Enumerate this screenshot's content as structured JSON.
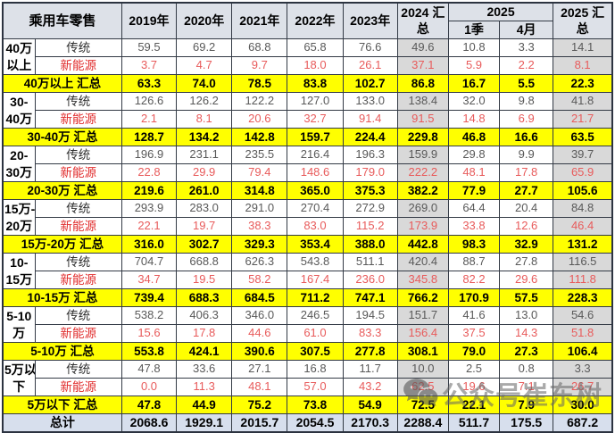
{
  "colors": {
    "summary_row_bg": "#ffff00",
    "summary_column_bg": "#d9d9d9",
    "header_bg": "#dde1e8",
    "total_row_bg": "#d7dfed",
    "nev_label_text": "#e02a2a",
    "nev_value_text": "#e85b5b",
    "traditional_value_text": "#595959",
    "grid_border": "#333a45"
  },
  "watermark": {
    "icon": "wechat-icon",
    "text": "公众号崔东树"
  },
  "chart_data": {
    "type": "table",
    "title": "乘用车零售",
    "year_headers": [
      "2019年",
      "2020年",
      "2021年",
      "2022年",
      "2023年"
    ],
    "summary_2024_header": "2024 汇总",
    "group_2025_header": "2025",
    "sub_2025_headers": [
      "1季",
      "4月"
    ],
    "summary_2025_header": "2025 汇总",
    "row_type_labels": {
      "traditional": "传统",
      "nev": "新能源"
    },
    "segments": [
      {
        "label_lines": [
          "40万",
          "以上"
        ],
        "summary_label": "40万以上 汇总",
        "traditional": [
          "59.5",
          "69.2",
          "68.8",
          "65.8",
          "76.6",
          "49.6",
          "10.8",
          "3.3",
          "14.1"
        ],
        "nev": [
          "3.7",
          "4.7",
          "9.7",
          "18.0",
          "26.1",
          "37.1",
          "5.9",
          "2.2",
          "8.1"
        ],
        "summary": [
          "63.3",
          "74.0",
          "78.5",
          "83.8",
          "102.7",
          "86.8",
          "16.7",
          "5.5",
          "22.3"
        ]
      },
      {
        "label_lines": [
          "30-",
          "40万"
        ],
        "summary_label": "30-40万 汇总",
        "traditional": [
          "126.6",
          "126.2",
          "122.2",
          "127.0",
          "133.0",
          "138.4",
          "32.0",
          "9.8",
          "41.8"
        ],
        "nev": [
          "2.1",
          "8.1",
          "20.6",
          "32.7",
          "91.4",
          "91.5",
          "14.8",
          "6.9",
          "21.7"
        ],
        "summary": [
          "128.7",
          "134.2",
          "142.8",
          "159.7",
          "224.4",
          "229.8",
          "46.8",
          "16.6",
          "63.5"
        ]
      },
      {
        "label_lines": [
          "20-",
          "30万"
        ],
        "summary_label": "20-30万 汇总",
        "traditional": [
          "196.9",
          "231.1",
          "235.5",
          "216.4",
          "196.3",
          "159.9",
          "29.8",
          "9.9",
          "39.7"
        ],
        "nev": [
          "22.8",
          "29.9",
          "79.4",
          "148.6",
          "179.0",
          "222.2",
          "48.1",
          "17.8",
          "65.9"
        ],
        "summary": [
          "219.6",
          "261.0",
          "314.8",
          "365.0",
          "375.3",
          "382.2",
          "77.9",
          "27.7",
          "105.6"
        ]
      },
      {
        "label_lines": [
          "15万-",
          "20万"
        ],
        "summary_label": "15万-20万 汇总",
        "traditional": [
          "293.9",
          "283.0",
          "291.0",
          "270.4",
          "272.9",
          "269.0",
          "64.4",
          "20.4",
          "84.8"
        ],
        "nev": [
          "22.1",
          "19.7",
          "38.3",
          "83.0",
          "115.2",
          "173.9",
          "33.8",
          "12.6",
          "46.4"
        ],
        "summary": [
          "316.0",
          "302.7",
          "329.3",
          "353.4",
          "388.0",
          "442.8",
          "98.3",
          "32.9",
          "131.2"
        ]
      },
      {
        "label_lines": [
          "10-",
          "15万"
        ],
        "summary_label": "10-15万 汇总",
        "traditional": [
          "704.7",
          "668.8",
          "626.3",
          "543.8",
          "511.1",
          "420.4",
          "88.7",
          "27.8",
          "116.5"
        ],
        "nev": [
          "34.7",
          "19.5",
          "58.2",
          "167.4",
          "236.0",
          "345.8",
          "82.2",
          "29.6",
          "111.8"
        ],
        "summary": [
          "739.4",
          "688.3",
          "684.5",
          "711.2",
          "747.1",
          "766.2",
          "170.9",
          "57.5",
          "228.3"
        ]
      },
      {
        "label_lines": [
          "5-10",
          "万"
        ],
        "summary_label": "5-10万 汇总",
        "traditional": [
          "538.2",
          "406.3",
          "346.0",
          "246.5",
          "194.5",
          "151.7",
          "41.6",
          "13.0",
          "54.6"
        ],
        "nev": [
          "15.6",
          "17.8",
          "44.6",
          "61.0",
          "83.3",
          "156.4",
          "37.5",
          "14.3",
          "51.8"
        ],
        "summary": [
          "553.8",
          "424.1",
          "390.6",
          "307.5",
          "277.8",
          "308.1",
          "79.0",
          "27.3",
          "106.4"
        ]
      },
      {
        "label_lines": [
          "5万以",
          "下"
        ],
        "summary_label": "5万以下 汇总",
        "traditional": [
          "47.8",
          "33.6",
          "27.1",
          "16.8",
          "11.7",
          "10.0",
          "2.5",
          "0.8",
          "3.3"
        ],
        "nev": [
          "0.0",
          "11.3",
          "48.1",
          "57.0",
          "43.2",
          "62.5",
          "19.6",
          "7.1",
          "26.7"
        ],
        "summary": [
          "47.8",
          "44.9",
          "75.2",
          "73.8",
          "54.9",
          "72.5",
          "22.1",
          "7.9",
          "30.0"
        ]
      }
    ],
    "total": {
      "label": "总计",
      "values": [
        "2068.6",
        "1929.1",
        "2015.7",
        "2054.5",
        "2170.3",
        "2288.4",
        "511.7",
        "175.5",
        "687.2"
      ]
    }
  }
}
